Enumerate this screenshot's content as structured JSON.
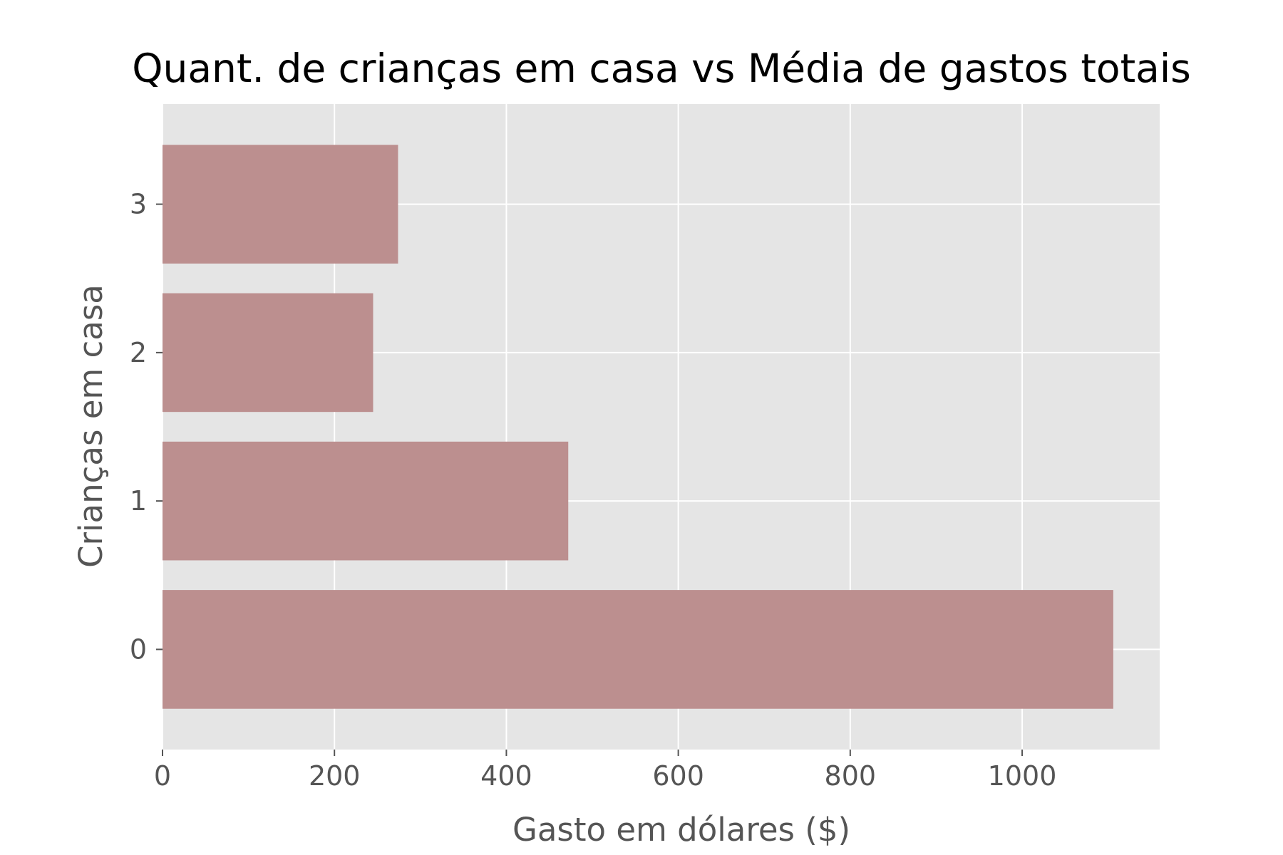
{
  "chart_data": {
    "type": "bar",
    "orientation": "horizontal",
    "title": "Quant. de crianças em casa vs Média de gastos totais",
    "xlabel": "Gasto em dólares ($)",
    "ylabel": "Crianças em casa",
    "categories": [
      "0",
      "1",
      "2",
      "3"
    ],
    "values": [
      1106,
      472,
      245,
      274
    ],
    "xlim": [
      0,
      1160
    ],
    "xticks": [
      0,
      200,
      400,
      600,
      800,
      1000
    ],
    "xtick_labels": [
      "0",
      "200",
      "400",
      "600",
      "800",
      "1000"
    ],
    "grid": true,
    "colors": {
      "bar": "#bc8f8f",
      "background": "#e5e5e5",
      "grid": "#ffffff",
      "tick_text": "#555555",
      "title_text": "#000000"
    }
  }
}
